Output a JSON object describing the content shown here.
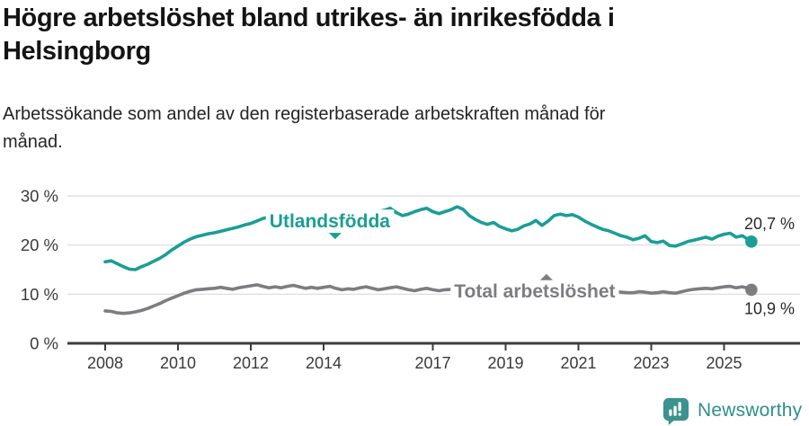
{
  "header": {
    "title": "Högre arbetslöshet bland utrikes- än inrikesfödda i Helsingborg",
    "subtitle": "Arbetssökande som andel av den registerbaserade arbetskraften månad för månad."
  },
  "chart_data": {
    "type": "line",
    "grid": true,
    "x_axis": {
      "range": [
        2008,
        2025.9
      ],
      "ticks": [
        2008,
        2010,
        2012,
        2014,
        2017,
        2019,
        2021,
        2023,
        2025
      ]
    },
    "y_axis": {
      "range": [
        0,
        30
      ],
      "unit": "%",
      "ticks": [
        {
          "value": 30,
          "label": "30 %"
        },
        {
          "value": 20,
          "label": "20 %"
        },
        {
          "value": 10,
          "label": "10 %"
        },
        {
          "value": 0,
          "label": "0 %"
        }
      ]
    },
    "series": [
      {
        "name": "Utlandsfödda",
        "color": "#1a9e96",
        "label": {
          "text": "Utlandsfödda",
          "x": 2014.17,
          "y": 24.85,
          "pointer": "down",
          "pointer_dx": 6
        },
        "end_value": 20.7,
        "end_label": "20,7 %",
        "end_label_position": "above",
        "points": [
          [
            2008.0,
            16.6
          ],
          [
            2008.17,
            16.8
          ],
          [
            2008.33,
            16.2
          ],
          [
            2008.5,
            15.6
          ],
          [
            2008.67,
            15.1
          ],
          [
            2008.83,
            15.0
          ],
          [
            2009.0,
            15.6
          ],
          [
            2009.17,
            16.1
          ],
          [
            2009.33,
            16.7
          ],
          [
            2009.5,
            17.3
          ],
          [
            2009.67,
            18.1
          ],
          [
            2009.83,
            19.0
          ],
          [
            2010.0,
            19.8
          ],
          [
            2010.17,
            20.6
          ],
          [
            2010.33,
            21.2
          ],
          [
            2010.5,
            21.7
          ],
          [
            2010.67,
            22.0
          ],
          [
            2010.83,
            22.3
          ],
          [
            2011.0,
            22.5
          ],
          [
            2011.17,
            22.8
          ],
          [
            2011.33,
            23.1
          ],
          [
            2011.5,
            23.4
          ],
          [
            2011.67,
            23.7
          ],
          [
            2011.83,
            24.1
          ],
          [
            2012.0,
            24.4
          ],
          [
            2012.17,
            24.9
          ],
          [
            2012.33,
            25.4
          ],
          [
            2012.5,
            25.7
          ],
          [
            2012.67,
            25.3
          ],
          [
            2012.83,
            25.1
          ],
          [
            2013.0,
            25.4
          ],
          [
            2013.17,
            25.7
          ],
          [
            2013.33,
            26.0
          ],
          [
            2013.5,
            25.8
          ],
          [
            2013.67,
            25.5
          ],
          [
            2013.83,
            25.7
          ],
          [
            2014.0,
            26.0
          ],
          [
            2014.17,
            26.2
          ],
          [
            2014.33,
            25.9
          ],
          [
            2014.5,
            25.7
          ],
          [
            2014.67,
            26.0
          ],
          [
            2014.83,
            26.3
          ],
          [
            2015.0,
            26.5
          ],
          [
            2015.17,
            26.7
          ],
          [
            2015.33,
            26.4
          ],
          [
            2015.5,
            26.8
          ],
          [
            2015.67,
            27.1
          ],
          [
            2015.83,
            27.5
          ],
          [
            2016.0,
            26.6
          ],
          [
            2016.17,
            26.0
          ],
          [
            2016.33,
            26.3
          ],
          [
            2016.5,
            26.8
          ],
          [
            2016.67,
            27.2
          ],
          [
            2016.83,
            27.5
          ],
          [
            2017.0,
            26.8
          ],
          [
            2017.17,
            26.4
          ],
          [
            2017.33,
            26.8
          ],
          [
            2017.5,
            27.2
          ],
          [
            2017.67,
            27.8
          ],
          [
            2017.83,
            27.3
          ],
          [
            2018.0,
            26.0
          ],
          [
            2018.17,
            25.2
          ],
          [
            2018.33,
            24.6
          ],
          [
            2018.5,
            24.2
          ],
          [
            2018.67,
            24.6
          ],
          [
            2018.83,
            23.8
          ],
          [
            2019.0,
            23.3
          ],
          [
            2019.17,
            22.9
          ],
          [
            2019.33,
            23.2
          ],
          [
            2019.5,
            23.9
          ],
          [
            2019.67,
            24.3
          ],
          [
            2019.83,
            25.0
          ],
          [
            2020.0,
            24.0
          ],
          [
            2020.17,
            24.9
          ],
          [
            2020.33,
            26.0
          ],
          [
            2020.5,
            26.3
          ],
          [
            2020.67,
            26.0
          ],
          [
            2020.83,
            26.2
          ],
          [
            2021.0,
            25.7
          ],
          [
            2021.17,
            24.9
          ],
          [
            2021.33,
            24.3
          ],
          [
            2021.5,
            23.7
          ],
          [
            2021.67,
            23.2
          ],
          [
            2021.83,
            22.9
          ],
          [
            2022.0,
            22.4
          ],
          [
            2022.17,
            21.9
          ],
          [
            2022.33,
            21.6
          ],
          [
            2022.5,
            21.1
          ],
          [
            2022.67,
            21.4
          ],
          [
            2022.83,
            21.9
          ],
          [
            2023.0,
            20.7
          ],
          [
            2023.17,
            20.5
          ],
          [
            2023.33,
            20.8
          ],
          [
            2023.5,
            19.9
          ],
          [
            2023.67,
            19.8
          ],
          [
            2023.83,
            20.2
          ],
          [
            2024.0,
            20.7
          ],
          [
            2024.17,
            21.0
          ],
          [
            2024.33,
            21.3
          ],
          [
            2024.5,
            21.6
          ],
          [
            2024.67,
            21.2
          ],
          [
            2024.83,
            21.8
          ],
          [
            2025.0,
            22.2
          ],
          [
            2025.17,
            22.4
          ],
          [
            2025.33,
            21.6
          ],
          [
            2025.5,
            21.9
          ],
          [
            2025.67,
            21.1
          ],
          [
            2025.75,
            20.7
          ]
        ]
      },
      {
        "name": "Total arbetslöshet",
        "color": "#7d7d81",
        "label": {
          "text": "Total arbetslöshet",
          "x": 2019.8,
          "y": 10.65,
          "pointer": "up",
          "pointer_dx": 13
        },
        "end_value": 10.9,
        "end_label": "10,9 %",
        "end_label_position": "below",
        "points": [
          [
            2008.0,
            6.6
          ],
          [
            2008.17,
            6.5
          ],
          [
            2008.33,
            6.2
          ],
          [
            2008.5,
            6.1
          ],
          [
            2008.67,
            6.2
          ],
          [
            2008.83,
            6.4
          ],
          [
            2009.0,
            6.7
          ],
          [
            2009.17,
            7.1
          ],
          [
            2009.33,
            7.6
          ],
          [
            2009.5,
            8.1
          ],
          [
            2009.67,
            8.7
          ],
          [
            2009.83,
            9.2
          ],
          [
            2010.0,
            9.7
          ],
          [
            2010.17,
            10.2
          ],
          [
            2010.33,
            10.6
          ],
          [
            2010.5,
            10.9
          ],
          [
            2010.67,
            11.0
          ],
          [
            2010.83,
            11.1
          ],
          [
            2011.0,
            11.2
          ],
          [
            2011.17,
            11.4
          ],
          [
            2011.33,
            11.2
          ],
          [
            2011.5,
            11.0
          ],
          [
            2011.67,
            11.3
          ],
          [
            2011.83,
            11.5
          ],
          [
            2012.0,
            11.7
          ],
          [
            2012.17,
            11.9
          ],
          [
            2012.33,
            11.6
          ],
          [
            2012.5,
            11.3
          ],
          [
            2012.67,
            11.5
          ],
          [
            2012.83,
            11.3
          ],
          [
            2013.0,
            11.6
          ],
          [
            2013.17,
            11.8
          ],
          [
            2013.33,
            11.5
          ],
          [
            2013.5,
            11.2
          ],
          [
            2013.67,
            11.4
          ],
          [
            2013.83,
            11.2
          ],
          [
            2014.0,
            11.4
          ],
          [
            2014.17,
            11.6
          ],
          [
            2014.33,
            11.2
          ],
          [
            2014.5,
            10.9
          ],
          [
            2014.67,
            11.1
          ],
          [
            2014.83,
            11.0
          ],
          [
            2015.0,
            11.3
          ],
          [
            2015.17,
            11.5
          ],
          [
            2015.33,
            11.2
          ],
          [
            2015.5,
            10.9
          ],
          [
            2015.67,
            11.1
          ],
          [
            2015.83,
            11.3
          ],
          [
            2016.0,
            11.5
          ],
          [
            2016.17,
            11.2
          ],
          [
            2016.33,
            10.9
          ],
          [
            2016.5,
            10.7
          ],
          [
            2016.67,
            11.0
          ],
          [
            2016.83,
            11.2
          ],
          [
            2017.0,
            10.9
          ],
          [
            2017.17,
            10.7
          ],
          [
            2017.33,
            10.9
          ],
          [
            2017.5,
            11.0
          ],
          [
            2017.67,
            10.8
          ],
          [
            2017.83,
            10.6
          ],
          [
            2018.0,
            10.4
          ],
          [
            2018.17,
            10.3
          ],
          [
            2018.33,
            10.2
          ],
          [
            2018.5,
            10.1
          ],
          [
            2018.67,
            10.0
          ],
          [
            2018.83,
            10.0
          ],
          [
            2019.0,
            9.9
          ],
          [
            2019.17,
            9.9
          ],
          [
            2019.33,
            9.8
          ],
          [
            2019.5,
            9.9
          ],
          [
            2019.67,
            10.0
          ],
          [
            2019.83,
            10.1
          ],
          [
            2020.0,
            10.4
          ],
          [
            2020.17,
            11.0
          ],
          [
            2020.33,
            11.5
          ],
          [
            2020.5,
            11.7
          ],
          [
            2020.67,
            11.6
          ],
          [
            2020.83,
            11.5
          ],
          [
            2021.0,
            11.4
          ],
          [
            2021.17,
            11.2
          ],
          [
            2021.33,
            11.0
          ],
          [
            2021.5,
            10.9
          ],
          [
            2021.67,
            10.7
          ],
          [
            2021.83,
            10.6
          ],
          [
            2022.0,
            10.5
          ],
          [
            2022.17,
            10.4
          ],
          [
            2022.33,
            10.3
          ],
          [
            2022.5,
            10.3
          ],
          [
            2022.67,
            10.5
          ],
          [
            2022.83,
            10.4
          ],
          [
            2023.0,
            10.2
          ],
          [
            2023.17,
            10.3
          ],
          [
            2023.33,
            10.5
          ],
          [
            2023.5,
            10.3
          ],
          [
            2023.67,
            10.2
          ],
          [
            2023.83,
            10.5
          ],
          [
            2024.0,
            10.8
          ],
          [
            2024.17,
            11.0
          ],
          [
            2024.33,
            11.1
          ],
          [
            2024.5,
            11.2
          ],
          [
            2024.67,
            11.1
          ],
          [
            2024.83,
            11.3
          ],
          [
            2025.0,
            11.5
          ],
          [
            2025.17,
            11.6
          ],
          [
            2025.33,
            11.3
          ],
          [
            2025.5,
            11.5
          ],
          [
            2025.67,
            11.2
          ],
          [
            2025.75,
            10.9
          ]
        ]
      }
    ],
    "colors": {
      "accent_teal": "#1a9e96",
      "neutral_gray": "#7d7d81",
      "grid": "#d9d9d9",
      "axis": "#3d3d3d"
    }
  },
  "footer": {
    "brand": "Newsworthy",
    "brand_color": "#2f8e8c"
  }
}
